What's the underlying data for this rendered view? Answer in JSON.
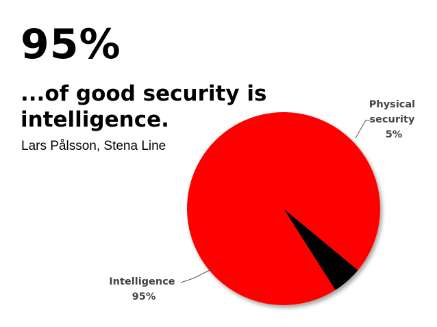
{
  "slide": {
    "big_number": "95%",
    "headline": "...of good security is intelligence.",
    "attribution": "Lars Pålsson, Stena Line"
  },
  "colors": {
    "intelligence": "#ff0000",
    "physical_security": "#000000",
    "label": "#444444"
  },
  "chart_data": {
    "type": "pie",
    "title": "",
    "slices": [
      {
        "label_lines": [
          "Physical",
          "security"
        ],
        "value_label": "5%",
        "value": 5,
        "color": "#000000"
      },
      {
        "label_lines": [
          "Intelligence"
        ],
        "value_label": "95%",
        "value": 95,
        "color": "#ff0000"
      }
    ]
  }
}
